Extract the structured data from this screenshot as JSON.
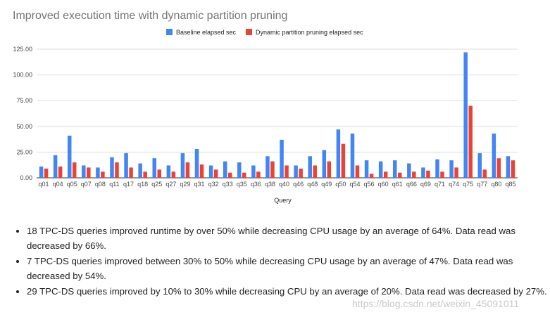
{
  "chart_data": {
    "type": "bar",
    "title": "Improved execution time with dynamic partition pruning",
    "xlabel": "Query",
    "ylabel": "",
    "ylim": [
      0,
      125
    ],
    "yticks": [
      "0.00",
      "25.00",
      "50.00",
      "75.00",
      "100.00",
      "125.00"
    ],
    "grid": true,
    "legend_position": "top-center",
    "categories": [
      "q01",
      "q04",
      "q05",
      "q07",
      "q08",
      "q11",
      "q17",
      "q18",
      "q25",
      "q27",
      "q29",
      "q31",
      "q32",
      "q33",
      "q35",
      "q36",
      "q38",
      "q40",
      "q46",
      "q48",
      "q49",
      "q50",
      "q54",
      "q56",
      "q60",
      "q61",
      "q66",
      "q69",
      "q71",
      "q74",
      "q75",
      "q77",
      "q80",
      "q85"
    ],
    "series": [
      {
        "name": "Baseline elapsed sec",
        "color": "#4285f4",
        "values": [
          11,
          22,
          41,
          12,
          10,
          20,
          24,
          14,
          19,
          12,
          24,
          28,
          12,
          16,
          15,
          12,
          21,
          37,
          12,
          21,
          27,
          47,
          43,
          17,
          16,
          17,
          14,
          10,
          18,
          17,
          122,
          24,
          43,
          21
        ]
      },
      {
        "name": "Dynamic partition pruning elapsed sec",
        "color": "#ea4335",
        "values": [
          9,
          11,
          15,
          10,
          6,
          15,
          10,
          6,
          8,
          6,
          15,
          13,
          8,
          5,
          5,
          6,
          16,
          12,
          9,
          12,
          16,
          33,
          12,
          4,
          6,
          5,
          6,
          7,
          6,
          10,
          70,
          8,
          19,
          17
        ]
      }
    ]
  },
  "notes": {
    "items": [
      "18 TPC-DS queries improved runtime by over 50% while decreasing CPU usage by an average of 64%. Data read was decreased by 66%.",
      "7 TPC-DS queries improved between 30% to 50% while decreasing CPU usage by an average of 47%. Data read was decreased by 54%.",
      "29 TPC-DS queries improved by 10% to 30% while decreasing CPU by an average of 20%. Data read was decreased by 27%."
    ]
  },
  "watermark": "https://blog.csdn.net/weixin_45091011"
}
